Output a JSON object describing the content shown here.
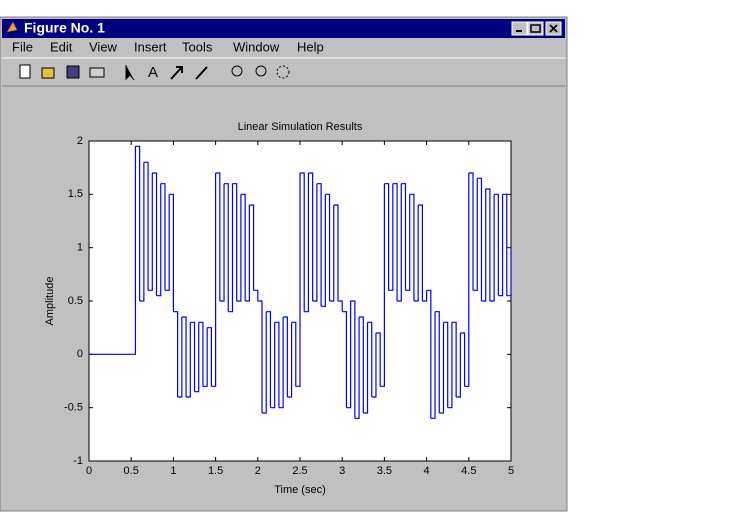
{
  "window": {
    "title": "Figure No. 1",
    "menu": [
      "File",
      "Edit",
      "View",
      "Insert",
      "Tools",
      "Window",
      "Help"
    ]
  },
  "chart_data": {
    "type": "stairs",
    "title": "Linear Simulation Results",
    "x_label": "Time (sec)",
    "y_label": "Amplitude",
    "color": "#0000ff",
    "x": [
      0,
      0.05,
      0.1,
      0.15,
      0.2,
      0.25,
      0.3,
      0.35,
      0.4,
      0.45,
      0.5,
      0.55,
      0.6,
      0.65,
      0.7,
      0.75,
      0.8,
      0.85,
      0.9,
      0.95,
      1,
      1.05,
      1.1,
      1.15,
      1.2,
      1.25,
      1.3,
      1.35,
      1.4,
      1.45,
      1.5,
      1.55,
      1.6,
      1.65,
      1.7,
      1.75,
      1.8,
      1.85,
      1.9,
      1.95,
      2,
      2.05,
      2.1,
      2.15,
      2.2,
      2.25,
      2.3,
      2.35,
      2.4,
      2.45,
      2.5,
      2.55,
      2.6,
      2.65,
      2.7,
      2.75,
      2.8,
      2.85,
      2.9,
      2.95,
      3,
      3.05,
      3.1,
      3.15,
      3.2,
      3.25,
      3.3,
      3.35,
      3.4,
      3.45,
      3.5,
      3.55,
      3.6,
      3.65,
      3.7,
      3.75,
      3.8,
      3.85,
      3.9,
      3.95,
      4,
      4.05,
      4.1,
      4.15,
      4.2,
      4.25,
      4.3,
      4.35,
      4.4,
      4.45,
      4.5,
      4.55,
      4.6,
      4.65,
      4.7,
      4.75,
      4.8,
      4.85,
      4.9,
      4.95,
      5
    ],
    "values": [
      0,
      0,
      0,
      0,
      0,
      0,
      0,
      0,
      0,
      0,
      0,
      1.95,
      0.5,
      1.8,
      0.6,
      1.7,
      0.55,
      1.6,
      0.6,
      1.5,
      0.4,
      -0.4,
      0.35,
      -0.4,
      0.3,
      -0.35,
      0.3,
      -0.3,
      0.25,
      -0.3,
      1.7,
      0.5,
      1.6,
      0.4,
      1.6,
      0.5,
      1.5,
      0.5,
      1.4,
      0.6,
      0.5,
      -0.55,
      0.4,
      -0.5,
      0.3,
      -0.5,
      0.35,
      -0.4,
      0.3,
      -0.3,
      1.7,
      0.4,
      1.7,
      0.5,
      1.6,
      0.45,
      1.5,
      0.5,
      1.4,
      0.5,
      0.4,
      -0.5,
      0.5,
      -0.6,
      0.35,
      -0.55,
      0.3,
      -0.4,
      0.2,
      -0.3,
      1.6,
      0.6,
      1.6,
      0.5,
      1.6,
      0.6,
      1.5,
      0.5,
      1.4,
      0.5,
      0.6,
      -0.6,
      0.4,
      -0.55,
      0.3,
      -0.5,
      0.3,
      -0.4,
      0.2,
      -0.3,
      1.7,
      0.6,
      1.65,
      0.5,
      1.55,
      0.5,
      1.5,
      0.55,
      1.5,
      0.55,
      1
    ],
    "xlim": [
      0,
      5
    ],
    "ylim": [
      -1,
      2
    ],
    "xticks": [
      0,
      0.5,
      1,
      1.5,
      2,
      2.5,
      3,
      3.5,
      4,
      4.5,
      5
    ],
    "yticks": [
      -1,
      -0.5,
      0,
      0.5,
      1,
      1.5,
      2
    ]
  }
}
